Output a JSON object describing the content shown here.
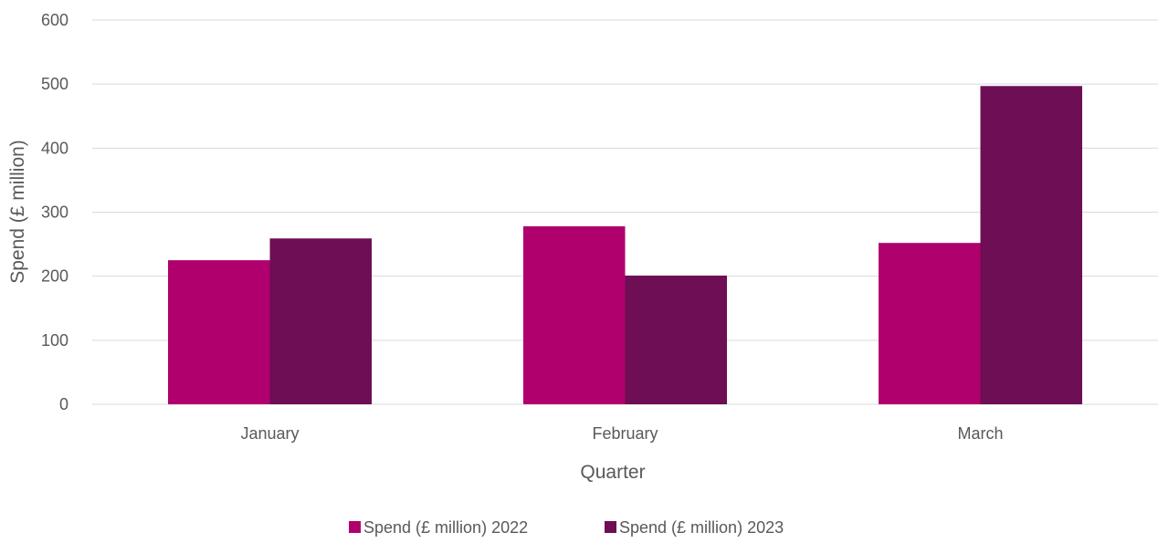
{
  "chart_data": {
    "type": "bar",
    "categories": [
      "January",
      "February",
      "March"
    ],
    "series": [
      {
        "name": "Spend (£ million) 2022",
        "values": [
          225,
          278,
          252
        ],
        "color": "#b0006e"
      },
      {
        "name": "Spend (£ million) 2023",
        "values": [
          259,
          201,
          497
        ],
        "color": "#6e0e55"
      }
    ],
    "xlabel": "Quarter",
    "ylabel": "Spend (£ million)",
    "ylim": [
      0,
      600
    ],
    "yticks": [
      0,
      100,
      200,
      300,
      400,
      500,
      600
    ],
    "grid": true,
    "legend_position": "bottom"
  }
}
